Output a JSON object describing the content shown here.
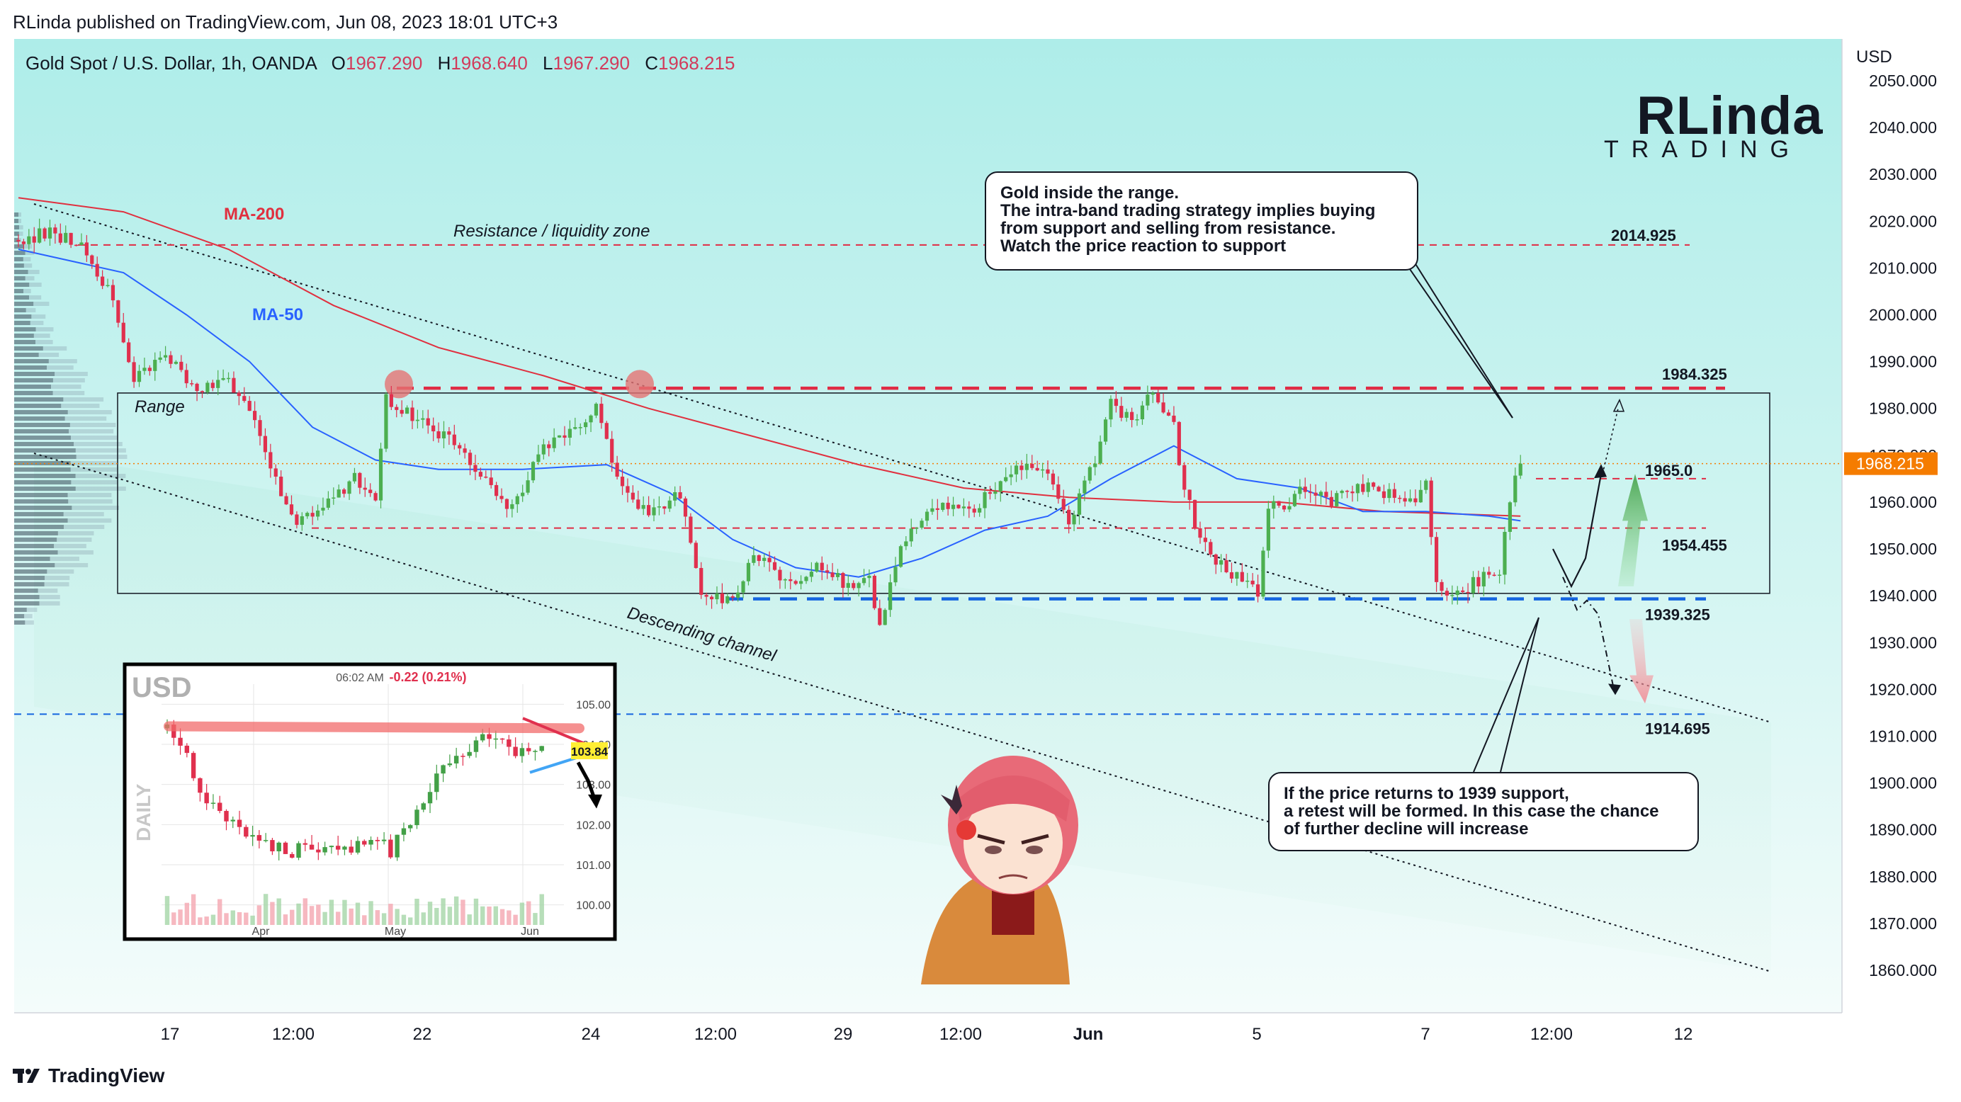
{
  "header": {
    "published": "RLinda published on TradingView.com, Jun 08, 2023 18:01 UTC+3"
  },
  "symbol": {
    "name": "Gold Spot / U.S. Dollar, 1h, OANDA",
    "o_label": "O",
    "o": "1967.290",
    "h_label": "H",
    "h": "1968.640",
    "l_label": "L",
    "l": "1967.290",
    "c_label": "C",
    "c": "1968.215"
  },
  "logo": {
    "big": "RLinda",
    "sub": "TRADING"
  },
  "footer": {
    "brand": "TradingView"
  },
  "callouts": {
    "top": [
      "Gold inside the range.",
      "The intra-band trading strategy implies buying",
      "from support and selling from resistance.",
      "Watch the price reaction to support"
    ],
    "bottom": [
      "If the price returns to 1939 support,",
      "a retest will be formed. In this case the chance",
      "of further decline will increase"
    ]
  },
  "colors": {
    "bg_top": "#aeede9",
    "bg_bottom": "#f2fbfa",
    "up": "#4caf50",
    "down": "#e0304e",
    "ma200": "#e0303f",
    "ma50": "#2962ff",
    "resistance": "#e02b44",
    "support": "#1565e0",
    "price_tag": "#f57c00"
  },
  "chart_data": [
    {
      "type": "line",
      "title": "Gold Spot / U.S. Dollar, 1h, OANDA",
      "currency": "USD",
      "ylim": [
        1856,
        2056
      ],
      "y_ticks": [
        "2050.000",
        "2040.000",
        "2030.000",
        "2020.000",
        "2010.000",
        "2000.000",
        "1990.000",
        "1980.000",
        "1970.000",
        "1960.000",
        "1950.000",
        "1940.000",
        "1930.000",
        "1920.000",
        "1910.000",
        "1900.000",
        "1890.000",
        "1880.000",
        "1870.000",
        "1860.000"
      ],
      "x_ticks": [
        "17",
        "12:00",
        "22",
        "24",
        "12:00",
        "29",
        "12:00",
        "Jun",
        "5",
        "7",
        "12:00",
        "12"
      ],
      "last_price": "1968.215",
      "price_path": [
        {
          "t": 0,
          "p": 2016
        },
        {
          "t": 3,
          "p": 2018
        },
        {
          "t": 6,
          "p": 2014
        },
        {
          "t": 9,
          "p": 2004
        },
        {
          "t": 11,
          "p": 1987
        },
        {
          "t": 14,
          "p": 1992
        },
        {
          "t": 17,
          "p": 1984
        },
        {
          "t": 20,
          "p": 1986
        },
        {
          "t": 23,
          "p": 1975
        },
        {
          "t": 26,
          "p": 1956
        },
        {
          "t": 29,
          "p": 1958
        },
        {
          "t": 32,
          "p": 1966
        },
        {
          "t": 34,
          "p": 1960
        },
        {
          "t": 35,
          "p": 1982
        },
        {
          "t": 38,
          "p": 1978
        },
        {
          "t": 41,
          "p": 1973
        },
        {
          "t": 44,
          "p": 1966
        },
        {
          "t": 47,
          "p": 1958
        },
        {
          "t": 50,
          "p": 1972
        },
        {
          "t": 53,
          "p": 1975
        },
        {
          "t": 55,
          "p": 1980
        },
        {
          "t": 57,
          "p": 1966
        },
        {
          "t": 60,
          "p": 1957
        },
        {
          "t": 63,
          "p": 1962
        },
        {
          "t": 65,
          "p": 1941
        },
        {
          "t": 68,
          "p": 1938
        },
        {
          "t": 70,
          "p": 1950
        },
        {
          "t": 73,
          "p": 1942
        },
        {
          "t": 76,
          "p": 1946
        },
        {
          "t": 79,
          "p": 1942
        },
        {
          "t": 81,
          "p": 1943
        },
        {
          "t": 82,
          "p": 1933
        },
        {
          "t": 84,
          "p": 1950
        },
        {
          "t": 87,
          "p": 1960
        },
        {
          "t": 90,
          "p": 1958
        },
        {
          "t": 93,
          "p": 1962
        },
        {
          "t": 95,
          "p": 1968
        },
        {
          "t": 98,
          "p": 1965
        },
        {
          "t": 100,
          "p": 1956
        },
        {
          "t": 102,
          "p": 1966
        },
        {
          "t": 104,
          "p": 1981
        },
        {
          "t": 106,
          "p": 1978
        },
        {
          "t": 108,
          "p": 1983
        },
        {
          "t": 110,
          "p": 1976
        },
        {
          "t": 111,
          "p": 1962
        },
        {
          "t": 113,
          "p": 1950
        },
        {
          "t": 116,
          "p": 1944
        },
        {
          "t": 118,
          "p": 1940
        },
        {
          "t": 119,
          "p": 1958
        },
        {
          "t": 122,
          "p": 1962
        },
        {
          "t": 125,
          "p": 1960
        },
        {
          "t": 128,
          "p": 1963
        },
        {
          "t": 131,
          "p": 1962
        },
        {
          "t": 133,
          "p": 1960
        },
        {
          "t": 134,
          "p": 1965
        },
        {
          "t": 135,
          "p": 1942
        },
        {
          "t": 137,
          "p": 1940
        },
        {
          "t": 140,
          "p": 1945
        },
        {
          "t": 141,
          "p": 1944
        },
        {
          "t": 142,
          "p": 1961
        },
        {
          "t": 143,
          "p": 1968.215
        }
      ],
      "series": [
        {
          "name": "MA-200",
          "values": [
            {
              "t": 0,
              "p": 2025
            },
            {
              "t": 10,
              "p": 2022
            },
            {
              "t": 20,
              "p": 2014
            },
            {
              "t": 30,
              "p": 2002
            },
            {
              "t": 40,
              "p": 1993
            },
            {
              "t": 50,
              "p": 1987
            },
            {
              "t": 60,
              "p": 1980
            },
            {
              "t": 70,
              "p": 1974
            },
            {
              "t": 80,
              "p": 1968
            },
            {
              "t": 90,
              "p": 1963
            },
            {
              "t": 100,
              "p": 1961
            },
            {
              "t": 110,
              "p": 1960
            },
            {
              "t": 120,
              "p": 1960
            },
            {
              "t": 130,
              "p": 1958
            },
            {
              "t": 143,
              "p": 1957
            }
          ]
        },
        {
          "name": "MA-50",
          "values": [
            {
              "t": 0,
              "p": 2014
            },
            {
              "t": 10,
              "p": 2009
            },
            {
              "t": 16,
              "p": 2000
            },
            {
              "t": 22,
              "p": 1990
            },
            {
              "t": 28,
              "p": 1976
            },
            {
              "t": 34,
              "p": 1969
            },
            {
              "t": 40,
              "p": 1967
            },
            {
              "t": 48,
              "p": 1967
            },
            {
              "t": 56,
              "p": 1968
            },
            {
              "t": 62,
              "p": 1962
            },
            {
              "t": 68,
              "p": 1952
            },
            {
              "t": 74,
              "p": 1946
            },
            {
              "t": 80,
              "p": 1944
            },
            {
              "t": 86,
              "p": 1948
            },
            {
              "t": 92,
              "p": 1954
            },
            {
              "t": 98,
              "p": 1957
            },
            {
              "t": 104,
              "p": 1965
            },
            {
              "t": 110,
              "p": 1972
            },
            {
              "t": 116,
              "p": 1965
            },
            {
              "t": 122,
              "p": 1963
            },
            {
              "t": 128,
              "p": 1958
            },
            {
              "t": 134,
              "p": 1958
            },
            {
              "t": 140,
              "p": 1957
            },
            {
              "t": 143,
              "p": 1956
            }
          ]
        }
      ],
      "levels": [
        {
          "label": "2014.925",
          "price": 2014.925,
          "style": "red-dashed"
        },
        {
          "label": "1984.325",
          "price": 1984.325,
          "style": "red-thick-dashed"
        },
        {
          "label": "1965.0",
          "price": 1965.0,
          "style": "red-dashed"
        },
        {
          "label": "1954.455",
          "price": 1954.455,
          "style": "red-dashed"
        },
        {
          "label": "1939.325",
          "price": 1939.325,
          "style": "blue-thick-dashed"
        },
        {
          "label": "1914.695",
          "price": 1914.695,
          "style": "blue-dashed"
        }
      ],
      "annotations": {
        "ma200_label": "MA-200",
        "ma50_label": "MA-50",
        "resistance_zone": "Resistance / liquidity zone",
        "range_label": "Range",
        "channel_label": "Descending channel"
      }
    },
    {
      "type": "bar",
      "title": "USD",
      "timeframe": "DAILY",
      "time_label": "06:02 AM",
      "change": "-0.22 (0.21%)",
      "last": "103.84",
      "y_ticks": [
        "105.00",
        "104.00",
        "103.00",
        "102.00",
        "101.00",
        "100.00"
      ],
      "x_ticks": [
        "Apr",
        "May",
        "Jun"
      ],
      "ylim": [
        99.5,
        105.5
      ]
    }
  ]
}
